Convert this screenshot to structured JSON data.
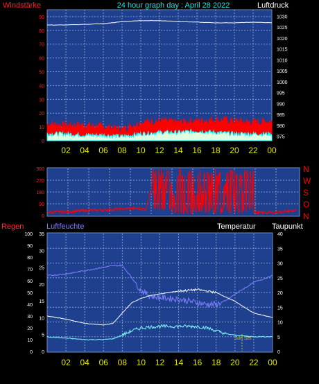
{
  "header": {
    "left_label": "Windstärke",
    "title": "24 hour graph day : April 28 2022",
    "right_label": "Luftdruck"
  },
  "colors": {
    "background": "#000000",
    "plot_bg": "#1f3f8f",
    "grid": "#7f9fcf",
    "wind_label": "#ff2020",
    "title": "#30e0e0",
    "xtick": "#e8e800",
    "pressure_line": "#ffffff",
    "wind_gust": "#ff0000",
    "wind_avg": "#00ffff",
    "wind_fill": "#e0ffe0",
    "direction": "#ff0000",
    "humidity": "#8080ff",
    "temperature": "#ffffff",
    "dewpoint": "#80ffff",
    "rain_label": "#ff3030",
    "sunset": "#c8c800"
  },
  "x_ticks": [
    "02",
    "04",
    "06",
    "08",
    "10",
    "12",
    "14",
    "16",
    "18",
    "20",
    "22",
    "00"
  ],
  "chart_data": [
    {
      "type": "line",
      "name": "wind and pressure",
      "x_hours": [
        0,
        2,
        4,
        6,
        8,
        10,
        12,
        14,
        16,
        18,
        20,
        22,
        24
      ],
      "left_axis": {
        "label": "Windstärke",
        "range": [
          0,
          95
        ],
        "ticks": [
          0,
          10,
          20,
          30,
          40,
          50,
          60,
          70,
          80,
          90
        ]
      },
      "right_axis": {
        "label": "Luftdruck",
        "range": [
          973,
          1033
        ],
        "ticks": [
          975,
          980,
          985,
          990,
          995,
          1000,
          1005,
          1010,
          1015,
          1020,
          1025,
          1030
        ]
      },
      "series": [
        {
          "role": "pressure",
          "axis": "right",
          "x": [
            0,
            2,
            4,
            6,
            8,
            10,
            12,
            14,
            16,
            18,
            20,
            22,
            24
          ],
          "values": [
            1026,
            1026,
            1026.3,
            1026.6,
            1027.5,
            1028,
            1028,
            1027.6,
            1027.3,
            1027,
            1027,
            1027.3,
            1027
          ]
        },
        {
          "role": "wind_gust",
          "axis": "left",
          "x": [
            0,
            2,
            4,
            6,
            8,
            10,
            12,
            14,
            16,
            18,
            20,
            22,
            24
          ],
          "values": [
            12,
            11,
            11,
            10,
            8,
            13,
            14,
            13,
            14,
            15,
            14,
            13,
            14
          ]
        },
        {
          "role": "wind_average",
          "axis": "left",
          "x": [
            0,
            2,
            4,
            6,
            8,
            10,
            12,
            14,
            16,
            18,
            20,
            22,
            24
          ],
          "values": [
            5,
            5,
            4,
            4,
            3,
            5,
            6,
            6,
            7,
            6,
            5,
            5,
            5
          ]
        }
      ],
      "grid": true
    },
    {
      "type": "line",
      "name": "wind direction",
      "x_hours": [
        0,
        2,
        4,
        6,
        8,
        10,
        12,
        14,
        16,
        18,
        20,
        22,
        24
      ],
      "left_axis": {
        "range": [
          0,
          360
        ],
        "ticks": [
          0,
          90,
          180,
          270,
          360
        ]
      },
      "right_labels": [
        "N",
        "W",
        "S",
        "O",
        "N"
      ],
      "series": [
        {
          "role": "direction",
          "x": [
            0,
            2,
            4,
            6,
            8,
            9.5,
            10,
            11,
            12,
            13,
            14,
            15,
            16,
            17,
            18,
            19,
            20,
            22,
            24
          ],
          "values": [
            25,
            30,
            40,
            45,
            55,
            50,
            200,
            260,
            190,
            240,
            250,
            200,
            300,
            220,
            250,
            180,
            20,
            25,
            40
          ]
        }
      ],
      "grid": true
    },
    {
      "type": "line",
      "name": "temperature and humidity",
      "x_hours": [
        0,
        2,
        4,
        6,
        8,
        10,
        12,
        14,
        16,
        18,
        20,
        22,
        24
      ],
      "labels": [
        "Regen",
        "Luftfeuchte",
        "Temperatur",
        "Taupunkt"
      ],
      "rain_axis": {
        "label": "Regen",
        "range": [
          0,
          100
        ],
        "ticks": [
          0,
          10,
          20,
          30,
          40,
          50,
          60,
          70,
          80,
          90,
          100
        ]
      },
      "humidity_axis": {
        "label": "Luftfeuchte",
        "range": [
          0,
          35
        ],
        "ticks": [
          0,
          5,
          10,
          15,
          20,
          25,
          30,
          35
        ]
      },
      "temperature_axis": {
        "label": "Taupunkt",
        "range": [
          0,
          40
        ],
        "ticks": [
          0,
          5,
          10,
          15,
          20,
          25,
          30,
          35,
          40
        ]
      },
      "series": [
        {
          "role": "humidity",
          "x": [
            0,
            2,
            4,
            6,
            7,
            8,
            9,
            10,
            11,
            12,
            14,
            16,
            17,
            18,
            19,
            20,
            22,
            24
          ],
          "values": [
            22.5,
            23,
            24,
            25,
            25.5,
            25.5,
            22,
            18,
            16.5,
            16,
            15.5,
            14.5,
            14,
            14,
            15,
            17,
            20.5,
            22.5
          ]
        },
        {
          "role": "temperature",
          "x": [
            0,
            2,
            4,
            6,
            7,
            8,
            9,
            10,
            11,
            12,
            14,
            16,
            17,
            18,
            19,
            20,
            22,
            24
          ],
          "values": [
            12,
            11,
            9.5,
            9,
            9.5,
            13,
            16.5,
            18,
            19,
            19.5,
            20.5,
            21,
            20.5,
            20,
            18.5,
            17,
            13,
            11.5
          ]
        },
        {
          "role": "dewpoint",
          "x": [
            0,
            2,
            4,
            6,
            7,
            8,
            9,
            10,
            11,
            12,
            14,
            16,
            17,
            18,
            19,
            20,
            22,
            24
          ],
          "values": [
            5,
            4.5,
            4,
            4,
            4.3,
            5.5,
            7,
            8,
            8.3,
            8.5,
            8.5,
            8.5,
            8,
            7,
            6,
            5.5,
            5,
            5
          ]
        }
      ],
      "annotations": [
        {
          "text": "Sun Set",
          "x": 20.75
        }
      ],
      "grid": true
    }
  ]
}
